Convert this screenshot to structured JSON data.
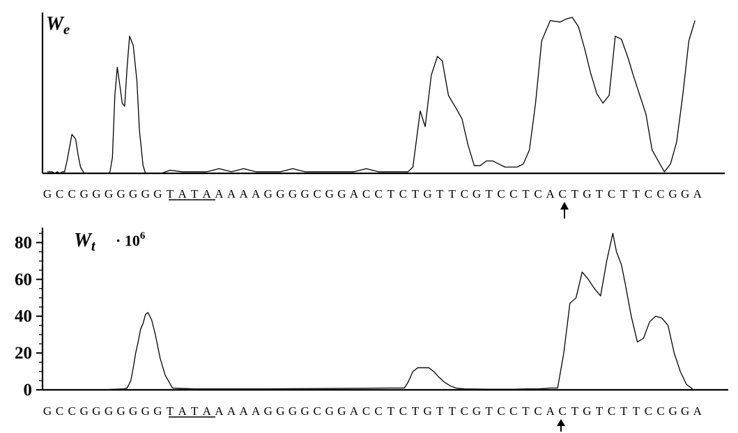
{
  "sequence": "GCCGGGGGGGTATAAAAAGGGGCGGACCTCTGTTCGTCCTCACTGTCTTCCGGA",
  "tata_box": {
    "start": 10,
    "end": 13
  },
  "marked_position": 41,
  "chart_data": [
    {
      "type": "line",
      "panel": "top",
      "label_main": "W",
      "label_sub": "e",
      "ylabel": "",
      "y_ticks": [],
      "ylim": [
        0,
        1
      ],
      "x": [
        0,
        0.4,
        0.6,
        0.8,
        1.0,
        1.2,
        1.4,
        1.6,
        2.0,
        2.3,
        2.5,
        2.7,
        3.0,
        3.2,
        3.5,
        4.4,
        5.0,
        5.1,
        5.3,
        5.5,
        5.7,
        5.9,
        6.1,
        6.3,
        6.5,
        6.7,
        7.0,
        7.3,
        7.5,
        7.8,
        8.0,
        8.5,
        8.8,
        9.3,
        10,
        11,
        12,
        12.5,
        13,
        14,
        15,
        16,
        17,
        18,
        18.5,
        19,
        20,
        21,
        22,
        23,
        23.5,
        24,
        25,
        26,
        27,
        28,
        29,
        29.4,
        29.8,
        30.4,
        30.8,
        31.3,
        31.8,
        32.2,
        32.7,
        33.3,
        33.8,
        34.3,
        34.8,
        35.3,
        35.8,
        36.3,
        36.8,
        37.3,
        37.8,
        38.3,
        38.8,
        39.3,
        39.8,
        40.3,
        41,
        41.8,
        42.3,
        42.8,
        43.3,
        43.8,
        44.3,
        44.8,
        45.3,
        45.8,
        46.3,
        46.8,
        47.3,
        47.8,
        48.3,
        48.8,
        49.3,
        49.8,
        50.3,
        50.8,
        51.3,
        51.8,
        52.3,
        52.8
      ],
      "series": [
        {
          "values": [
            0.01,
            0.01,
            0.0,
            0.01,
            0.0,
            0.01,
            0.01,
            0.08,
            0.25,
            0.22,
            0.12,
            0.04,
            0.0,
            0.0,
            0.0,
            0.0,
            0.0,
            0.01,
            0.1,
            0.5,
            0.68,
            0.57,
            0.45,
            0.43,
            0.68,
            0.88,
            0.82,
            0.59,
            0.28,
            0.05,
            0.0,
            0.0,
            0.0,
            0.0,
            0.02,
            0.01,
            0.01,
            0.01,
            0.01,
            0.03,
            0.01,
            0.03,
            0.01,
            0.01,
            0.01,
            0.01,
            0.03,
            0.01,
            0.01,
            0.01,
            0.01,
            0.01,
            0.01,
            0.03,
            0.01,
            0.01,
            0.01,
            0.01,
            0.04,
            0.4,
            0.3,
            0.63,
            0.75,
            0.72,
            0.5,
            0.42,
            0.35,
            0.18,
            0.05,
            0.05,
            0.08,
            0.08,
            0.06,
            0.04,
            0.04,
            0.04,
            0.06,
            0.15,
            0.45,
            0.85,
            0.98,
            0.97,
            0.99,
            1.0,
            0.94,
            0.8,
            0.64,
            0.51,
            0.45,
            0.5,
            0.88,
            0.86,
            0.75,
            0.62,
            0.5,
            0.38,
            0.15,
            0.08,
            0.01,
            0.06,
            0.2,
            0.5,
            0.85,
            0.98
          ]
        }
      ]
    },
    {
      "type": "line",
      "panel": "bottom",
      "label_main": "W",
      "label_sub": "t",
      "label_factor": "· 10",
      "label_exp": "6",
      "ylabel": "",
      "y_ticks": [
        0,
        20,
        40,
        60,
        80
      ],
      "ylim": [
        0,
        90
      ],
      "x": [
        0,
        5,
        6.2,
        6.5,
        6.8,
        7.0,
        7.2,
        7.4,
        7.6,
        7.8,
        8.0,
        8.2,
        8.5,
        8.8,
        9.2,
        9.6,
        10.2,
        12,
        17,
        28,
        29.1,
        29.4,
        29.8,
        30.2,
        30.6,
        31.1,
        31.5,
        31.9,
        32.4,
        32.9,
        33.3,
        34,
        36,
        37,
        38,
        39,
        40,
        41,
        41.6,
        42.1,
        42.6,
        43.1,
        43.6,
        44.1,
        44.6,
        45.1,
        45.6,
        46.1,
        46.4,
        46.8,
        47.1,
        47.6,
        48.1,
        48.6,
        49.1,
        49.6,
        50.1,
        50.6,
        51.1,
        51.6,
        52.1,
        52.6
      ],
      "series": [
        {
          "values": [
            0,
            0.2,
            0.5,
            1,
            5,
            12,
            20,
            26,
            33,
            36,
            41,
            42,
            38,
            30,
            17,
            8,
            1,
            0.5,
            0.5,
            1,
            1,
            4,
            10,
            12,
            12,
            12,
            10,
            7,
            4,
            2,
            1,
            0.5,
            0.3,
            0.3,
            0.3,
            0.5,
            0.5,
            1,
            1,
            20,
            47,
            50,
            64,
            60,
            55,
            51,
            70,
            85,
            75,
            68,
            58,
            40,
            26,
            28,
            37,
            40,
            39,
            35,
            20,
            10,
            3,
            0.5
          ]
        }
      ]
    }
  ]
}
